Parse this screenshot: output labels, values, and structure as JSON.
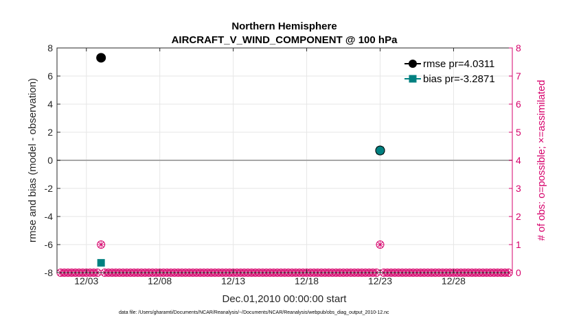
{
  "chart_data": {
    "type": "scatter",
    "title": "Northern Hemisphere",
    "subtitle": "AIRCRAFT_V_WIND_COMPONENT @ 100 hPa",
    "xlabel": "Dec.01,2010 00:00:00 start",
    "ylabel": "rmse and bias (model - observation)",
    "ylabel_right": "# of obs: o=possible; ×=assimilated",
    "x_range_days": [
      0,
      31
    ],
    "xticks": [
      {
        "day": 2,
        "label": "12/03"
      },
      {
        "day": 7,
        "label": "12/08"
      },
      {
        "day": 12,
        "label": "12/13"
      },
      {
        "day": 17,
        "label": "12/18"
      },
      {
        "day": 22,
        "label": "12/23"
      },
      {
        "day": 27,
        "label": "12/28"
      }
    ],
    "ylim": [
      -8,
      8
    ],
    "yticks": [
      8,
      6,
      4,
      2,
      0,
      -2,
      -4,
      -6,
      -8
    ],
    "ylim_right": [
      0,
      8
    ],
    "yticks_right": [
      8,
      7,
      6,
      5,
      4,
      3,
      2,
      1,
      0
    ],
    "zero_line": 0,
    "grid": true,
    "legend_position": "top-right",
    "series": [
      {
        "name": "rmse pr=4.0311",
        "color": "#000000",
        "marker": "circle",
        "points": [
          {
            "x": 3.0,
            "y": 7.3
          },
          {
            "x": 22.0,
            "y": 0.7
          }
        ]
      },
      {
        "name": "bias pr=-3.2871",
        "color": "#008080",
        "marker": "square",
        "points": [
          {
            "x": 3.0,
            "y": -7.3
          },
          {
            "x": 22.0,
            "y": 0.7
          }
        ]
      }
    ],
    "obs_count": {
      "color": "#d6006b",
      "nonzero": [
        {
          "x": 3.0,
          "y": 1
        },
        {
          "x": 22.0,
          "y": 1
        }
      ],
      "baseline_count": 0,
      "interval_days": 0.25
    },
    "footer": "data file: /Users/gharamti/Documents/NCAR/Reanalysis/~/Documents/NCAR/Reanalysis/webpub/obs_diag_output_2010-12.nc"
  }
}
